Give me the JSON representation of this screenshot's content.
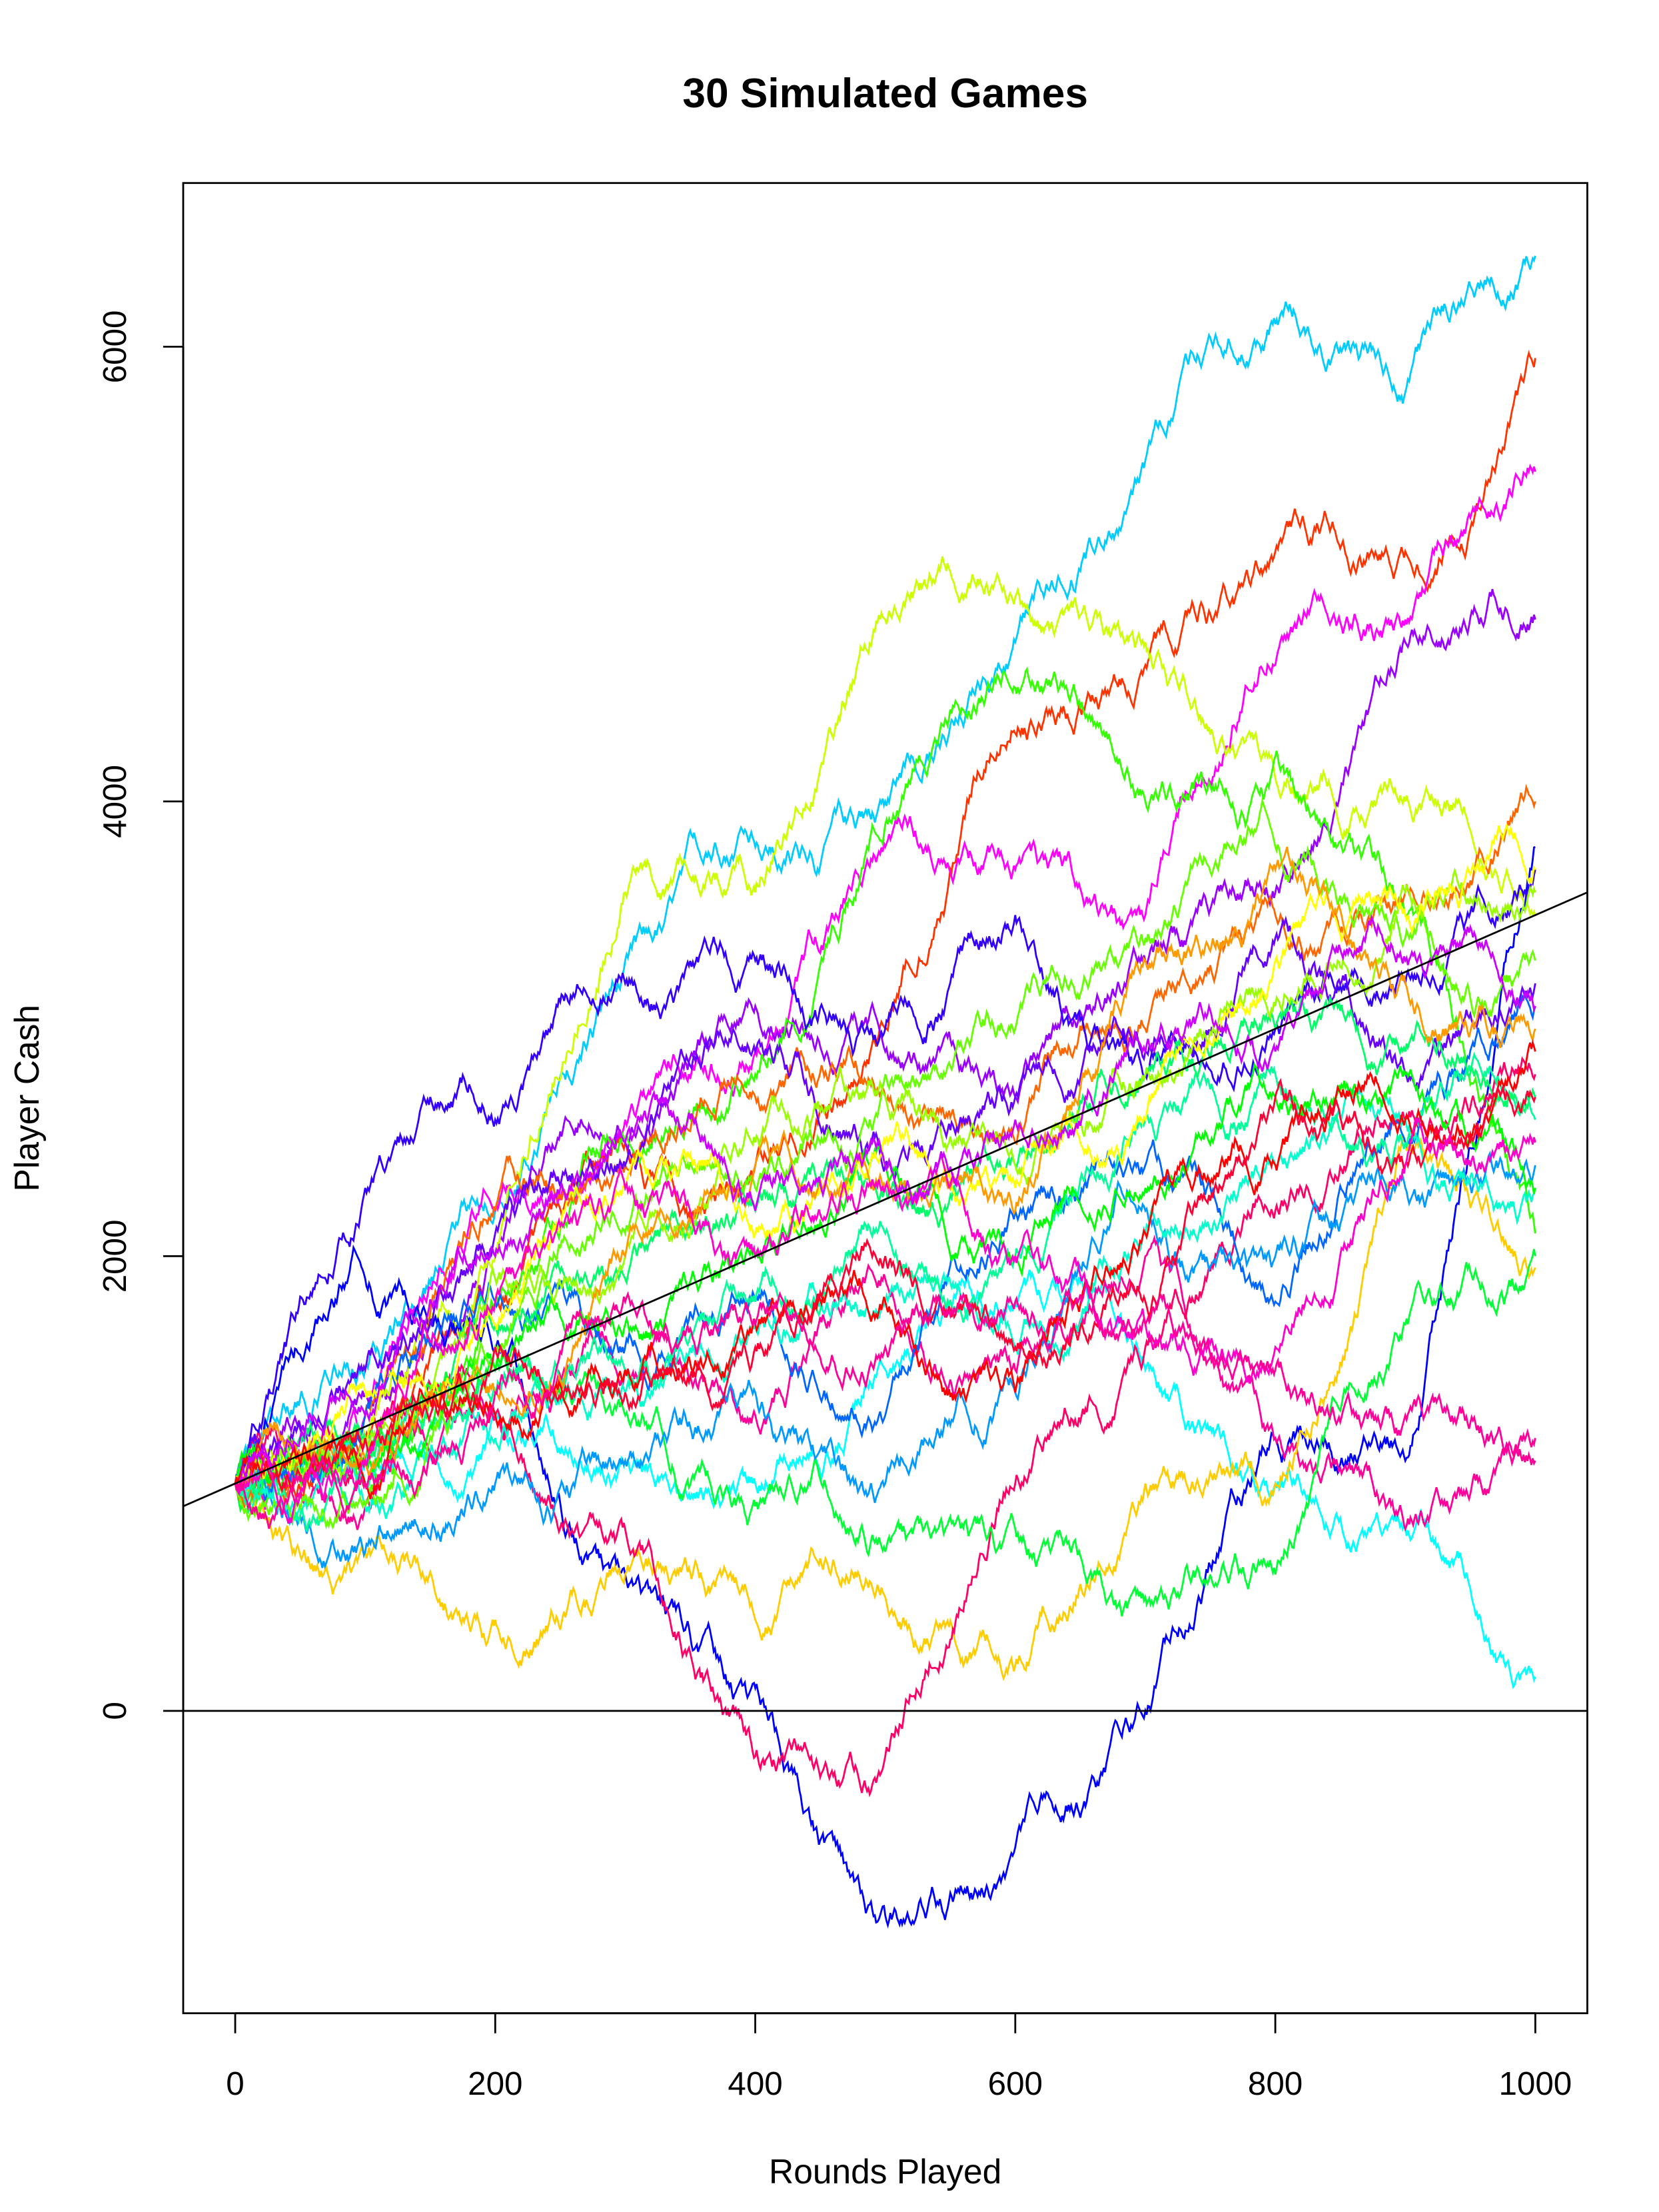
{
  "chart_data": {
    "type": "line",
    "title": "30 Simulated Games",
    "xlabel": "Rounds Played",
    "ylabel": "Player Cash",
    "xlim": [
      -40,
      1040
    ],
    "ylim": [
      -1330,
      6720
    ],
    "x_ticks": [
      0,
      200,
      400,
      600,
      800,
      1000
    ],
    "x_tick_labels": [
      "0",
      "200",
      "400",
      "600",
      "800",
      "1000"
    ],
    "y_ticks": [
      0,
      2000,
      4000,
      6000
    ],
    "y_tick_labels": [
      "0",
      "2000",
      "4000",
      "6000"
    ],
    "grid": false,
    "legend": "none",
    "reference_lines": [
      {
        "kind": "horizontal",
        "y": 0,
        "color": "#000000"
      },
      {
        "kind": "trend",
        "intercept": 1000,
        "slope": 2.5,
        "color": "#000000"
      }
    ],
    "x": [
      0,
      100,
      200,
      300,
      400,
      500,
      600,
      700,
      800,
      900,
      1000
    ],
    "series": [
      {
        "color": "#00CCFF",
        "values": [
          1000,
          1500,
          2200,
          3300,
          3800,
          4000,
          4700,
          5500,
          6100,
          5800,
          6400
        ]
      },
      {
        "color": "#FF3300",
        "values": [
          1000,
          1200,
          1800,
          2500,
          2400,
          3000,
          4300,
          4600,
          5100,
          5100,
          5950
        ]
      },
      {
        "color": "#FF00FF",
        "values": [
          1000,
          1300,
          2200,
          2600,
          2900,
          3800,
          3700,
          3500,
          4600,
          4800,
          5450
        ]
      },
      {
        "color": "#9900FF",
        "values": [
          1000,
          1400,
          2000,
          2500,
          3100,
          2900,
          2700,
          3300,
          3600,
          4700,
          4800
        ]
      },
      {
        "color": "#CCFF00",
        "values": [
          1000,
          1200,
          2000,
          3600,
          3600,
          4800,
          4900,
          4700,
          4100,
          4000,
          3500
        ]
      },
      {
        "color": "#33FF00",
        "values": [
          1000,
          1000,
          1800,
          2500,
          2800,
          3900,
          4500,
          4000,
          4200,
          3500,
          2100
        ]
      },
      {
        "color": "#0000FF",
        "values": [
          1000,
          1900,
          1600,
          600,
          100,
          -900,
          -600,
          0,
          1200,
          1100,
          3800
        ]
      },
      {
        "color": "#00FFFF",
        "values": [
          1000,
          1100,
          1300,
          1100,
          1000,
          1500,
          1800,
          1500,
          1000,
          800,
          150
        ]
      },
      {
        "color": "#FF0099",
        "values": [
          1000,
          900,
          1300,
          1500,
          1300,
          1900,
          1500,
          2000,
          1200,
          800,
          1200
        ]
      },
      {
        "color": "#FFCC00",
        "values": [
          1000,
          700,
          400,
          600,
          400,
          500,
          200,
          1000,
          1000,
          2500,
          1950
        ]
      },
      {
        "color": "#FF0066",
        "values": [
          1000,
          1100,
          1300,
          800,
          -200,
          -200,
          1000,
          1600,
          2200,
          2600,
          2800
        ]
      },
      {
        "color": "#00FF33",
        "values": [
          1000,
          1100,
          1500,
          1300,
          900,
          700,
          800,
          500,
          600,
          1700,
          2000
        ]
      },
      {
        "color": "#FF6600",
        "values": [
          1000,
          1300,
          2200,
          2400,
          2700,
          2700,
          2500,
          3000,
          3500,
          3600,
          4000
        ]
      },
      {
        "color": "#3300FF",
        "values": [
          1000,
          2300,
          2600,
          3200,
          3300,
          3000,
          3500,
          2800,
          3000,
          3200,
          3700
        ]
      },
      {
        "color": "#6600FF",
        "values": [
          1000,
          1500,
          2100,
          2400,
          2900,
          2400,
          2700,
          2900,
          3400,
          2800,
          3200
        ]
      },
      {
        "color": "#0066FF",
        "values": [
          1000,
          1300,
          1800,
          1600,
          1800,
          1300,
          2200,
          2400,
          1800,
          2500,
          3100
        ]
      },
      {
        "color": "#0099FF",
        "values": [
          1000,
          700,
          1000,
          1100,
          1400,
          1000,
          1400,
          2200,
          2000,
          2300,
          2400
        ]
      },
      {
        "color": "#00FFCC",
        "values": [
          1000,
          900,
          1200,
          1400,
          1700,
          1800,
          1600,
          2100,
          2400,
          2600,
          2300
        ]
      },
      {
        "color": "#00FF99",
        "values": [
          1000,
          1000,
          1400,
          1500,
          1800,
          2100,
          2000,
          2600,
          2800,
          2500,
          2600
        ]
      },
      {
        "color": "#00FF66",
        "values": [
          1000,
          1200,
          1700,
          1900,
          2200,
          2300,
          2400,
          2800,
          3000,
          2900,
          2700
        ]
      },
      {
        "color": "#00FF00",
        "values": [
          1000,
          1100,
          1500,
          1700,
          2000,
          2400,
          2000,
          2300,
          2700,
          2800,
          2300
        ]
      },
      {
        "color": "#66FF00",
        "values": [
          1000,
          900,
          1600,
          2100,
          2300,
          2800,
          3000,
          3400,
          3800,
          3400,
          3300
        ]
      },
      {
        "color": "#99FF00",
        "values": [
          1000,
          1200,
          1900,
          2000,
          2500,
          2700,
          2400,
          2800,
          3100,
          3600,
          3600
        ]
      },
      {
        "color": "#FFFF00",
        "values": [
          1000,
          1400,
          1700,
          2300,
          2100,
          2500,
          2300,
          2600,
          3300,
          3500,
          3700
        ]
      },
      {
        "color": "#FF9900",
        "values": [
          1000,
          1100,
          1400,
          2000,
          2400,
          2300,
          2200,
          3300,
          3700,
          3200,
          3000
        ]
      },
      {
        "color": "#FF0000",
        "values": [
          1000,
          1000,
          1300,
          1500,
          1700,
          1800,
          1400,
          2100,
          2400,
          2600,
          2900
        ]
      },
      {
        "color": "#FF0033",
        "values": [
          1000,
          1200,
          1600,
          1400,
          1600,
          2000,
          1600,
          1800,
          2700,
          2400,
          2700
        ]
      },
      {
        "color": "#FF00CC",
        "values": [
          1000,
          1100,
          1800,
          2300,
          2000,
          2300,
          2000,
          1700,
          1600,
          2400,
          2500
        ]
      },
      {
        "color": "#CC00FF",
        "values": [
          1000,
          1300,
          2000,
          2500,
          2200,
          2400,
          2600,
          2900,
          2900,
          3300,
          3100
        ]
      },
      {
        "color": "#FF0099",
        "values": [
          1000,
          1000,
          1400,
          1800,
          1700,
          1600,
          1800,
          1700,
          1500,
          1300,
          1100
        ]
      }
    ]
  }
}
